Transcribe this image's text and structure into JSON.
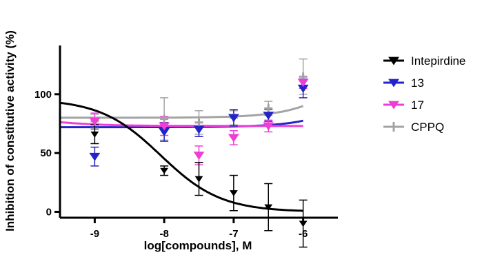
{
  "chart_data": {
    "type": "scatter",
    "title": "",
    "xlabel": "log[compounds], M",
    "ylabel": "Inhibition of constitutive activity (%)",
    "xlim": [
      -9.5,
      -5.5
    ],
    "ylim": [
      -5,
      145
    ],
    "x_ticks": [
      "-9",
      "-8",
      "-7",
      "-6"
    ],
    "y_ticks": [
      "0",
      "50",
      "100"
    ],
    "legend_position": "right",
    "series": [
      {
        "name": "Intepirdine",
        "color": "#000000",
        "marker": "triangle-down",
        "points": [
          {
            "x": -9.0,
            "y": 66,
            "err": 8
          },
          {
            "x": -8.0,
            "y": 35,
            "err": 4
          },
          {
            "x": -7.5,
            "y": 28,
            "err": 14
          },
          {
            "x": -7.0,
            "y": 16,
            "err": 15
          },
          {
            "x": -6.5,
            "y": 4,
            "err": 20
          },
          {
            "x": -6.0,
            "y": -10,
            "err": 20
          }
        ],
        "fit": {
          "bottom": 0,
          "top": 96,
          "logIC50": -8.05,
          "hill": -1
        }
      },
      {
        "name": "13",
        "color": "#2323c8",
        "marker": "triangle-down",
        "points": [
          {
            "x": -9.0,
            "y": 47,
            "err": 8
          },
          {
            "x": -8.0,
            "y": 68,
            "err": 8
          },
          {
            "x": -7.5,
            "y": 70,
            "err": 6
          },
          {
            "x": -7.0,
            "y": 80,
            "err": 7
          },
          {
            "x": -6.5,
            "y": 82,
            "err": 5
          },
          {
            "x": -6.0,
            "y": 105,
            "err": 8
          }
        ],
        "fit": {
          "bottom": 72,
          "top": 200,
          "logIC50": -4.65,
          "hill": 1
        }
      },
      {
        "name": "17",
        "color": "#ee3ed5",
        "marker": "triangle-down",
        "points": [
          {
            "x": -9.0,
            "y": 77,
            "err": 7
          },
          {
            "x": -8.0,
            "y": 73,
            "err": 8
          },
          {
            "x": -7.5,
            "y": 48,
            "err": 8
          },
          {
            "x": -7.0,
            "y": 63,
            "err": 6
          },
          {
            "x": -6.5,
            "y": 73,
            "err": 5
          },
          {
            "x": -6.0,
            "y": 110,
            "err": 5
          }
        ],
        "fit": {
          "bottom": 73,
          "top": 82,
          "logIC50": -9.75,
          "hill": -1
        }
      },
      {
        "name": "CPPQ",
        "color": "#a3a3a3",
        "marker": "cross",
        "points": [
          {
            "x": -9.0,
            "y": 77,
            "err": 6
          },
          {
            "x": -8.0,
            "y": 79,
            "err": 18
          },
          {
            "x": -7.5,
            "y": 76,
            "err": 10
          },
          {
            "x": -7.0,
            "y": 80,
            "err": 6
          },
          {
            "x": -6.5,
            "y": 88,
            "err": 6
          },
          {
            "x": -6.0,
            "y": 115,
            "err": 15
          }
        ],
        "fit": {
          "bottom": 80,
          "top": 190,
          "logIC50": -5.0,
          "hill": 1
        }
      }
    ]
  }
}
